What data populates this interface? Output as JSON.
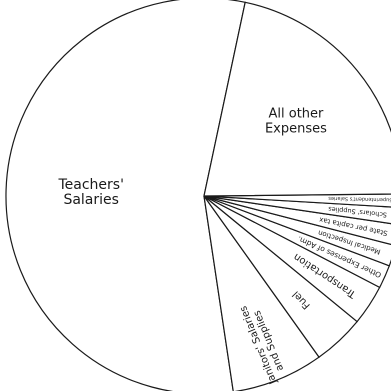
{
  "chart_data": {
    "type": "pie",
    "start_angle_deg": -78,
    "direction": "counterclockwise",
    "slices": [
      {
        "label": "Teachers' Salaries",
        "lines": [
          "Teachers'",
          "Salaries"
        ],
        "value": 55.7
      },
      {
        "label": "Janitors' Salaries and Supplies",
        "lines": [
          "Janitors' Salaries",
          "and Supplies"
        ],
        "value": 7.5
      },
      {
        "label": "Fuel",
        "lines": [
          "Fuel"
        ],
        "value": 4.2
      },
      {
        "label": "Transportation",
        "lines": [
          "Transportation"
        ],
        "value": 3.3
      },
      {
        "label": "Other Expenses of Adm.",
        "lines": [
          "Other Expenses of Adm."
        ],
        "value": 1.9
      },
      {
        "label": "Medical Inspection",
        "lines": [
          "Medical Inspection"
        ],
        "value": 1.7
      },
      {
        "label": "State per capita tax",
        "lines": [
          "State per capita tax"
        ],
        "value": 1.7
      },
      {
        "label": "Scholars' Supplies",
        "lines": [
          "Scholars' Supplies"
        ],
        "value": 1.4
      },
      {
        "label": "Superintendent's Salaries",
        "lines": [
          "Superintendent's Salaries"
        ],
        "value": 1.1
      },
      {
        "label": "All other Expenses",
        "lines": [
          "All other",
          "Expenses"
        ],
        "value": 21.5
      }
    ],
    "title": "",
    "legend": "none",
    "stroke_color": "#1a1a1a",
    "fill_color": "#ffffff"
  }
}
